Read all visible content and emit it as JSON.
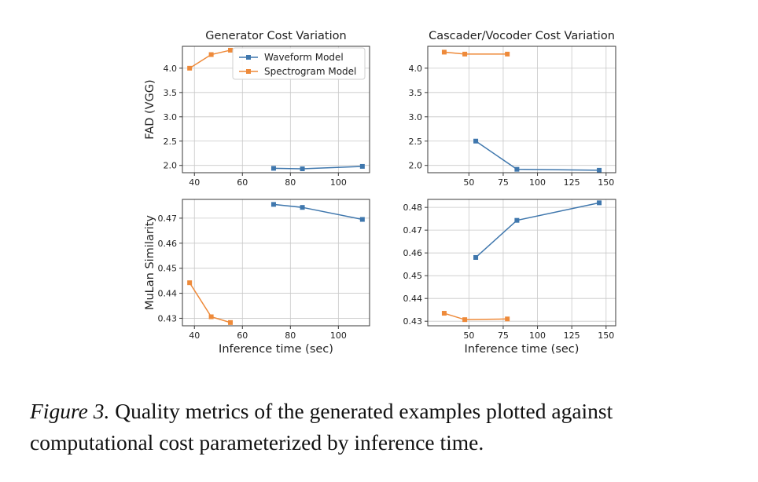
{
  "colors": {
    "waveform": "#3f77ad",
    "spectrogram": "#ee8a3a",
    "grid": "#c8c8c8",
    "frame": "#3a3a3a"
  },
  "chart_data": [
    {
      "type": "line",
      "title": "Generator Cost Variation",
      "xlabel": "",
      "ylabel": "FAD (VGG)",
      "xlim": [
        35,
        113
      ],
      "ylim": [
        1.85,
        4.45
      ],
      "xticks": [
        40,
        60,
        80,
        100
      ],
      "yticks": [
        2.0,
        2.5,
        3.0,
        3.5,
        4.0
      ],
      "ytick_labels": [
        "2.0",
        "2.5",
        "3.0",
        "3.5",
        "4.0"
      ],
      "grid": true,
      "legend": {
        "placement": "top-right",
        "entries": [
          "Waveform Model",
          "Spectrogram Model"
        ]
      },
      "series": [
        {
          "name": "Waveform Model",
          "x": [
            73,
            85,
            110
          ],
          "y": [
            1.94,
            1.93,
            1.98
          ]
        },
        {
          "name": "Spectrogram Model",
          "x": [
            38,
            47,
            55
          ],
          "y": [
            4.0,
            4.28,
            4.37
          ]
        }
      ]
    },
    {
      "type": "line",
      "title": "Cascader/Vocoder Cost Variation",
      "xlabel": "",
      "ylabel": "",
      "xlim": [
        20,
        157
      ],
      "ylim": [
        1.85,
        4.45
      ],
      "xticks": [
        50,
        75,
        100,
        125,
        150
      ],
      "yticks": [
        2.0,
        2.5,
        3.0,
        3.5,
        4.0
      ],
      "ytick_labels": [
        "2.0",
        "2.5",
        "3.0",
        "3.5",
        "4.0"
      ],
      "grid": true,
      "series": [
        {
          "name": "Waveform Model",
          "x": [
            55,
            85,
            145
          ],
          "y": [
            2.5,
            1.92,
            1.9
          ]
        },
        {
          "name": "Spectrogram Model",
          "x": [
            32,
            47,
            78
          ],
          "y": [
            4.33,
            4.29,
            4.29
          ]
        }
      ]
    },
    {
      "type": "line",
      "title": "",
      "xlabel": "Inference time (sec)",
      "ylabel": "MuLan Similarity",
      "xlim": [
        35,
        113
      ],
      "ylim": [
        0.427,
        0.4775
      ],
      "xticks": [
        40,
        60,
        80,
        100
      ],
      "yticks": [
        0.43,
        0.44,
        0.45,
        0.46,
        0.47
      ],
      "ytick_labels": [
        "0.43",
        "0.44",
        "0.45",
        "0.46",
        "0.47"
      ],
      "grid": true,
      "series": [
        {
          "name": "Waveform Model",
          "x": [
            73,
            85,
            110
          ],
          "y": [
            0.4755,
            0.4743,
            0.4695
          ]
        },
        {
          "name": "Spectrogram Model",
          "x": [
            38,
            47,
            55
          ],
          "y": [
            0.4442,
            0.4306,
            0.4283
          ]
        }
      ]
    },
    {
      "type": "line",
      "title": "",
      "xlabel": "Inference time (sec)",
      "ylabel": "",
      "xlim": [
        20,
        157
      ],
      "ylim": [
        0.428,
        0.4835
      ],
      "xticks": [
        50,
        75,
        100,
        125,
        150
      ],
      "yticks": [
        0.43,
        0.44,
        0.45,
        0.46,
        0.47,
        0.48
      ],
      "ytick_labels": [
        "0.43",
        "0.44",
        "0.45",
        "0.46",
        "0.47",
        "0.48"
      ],
      "grid": true,
      "series": [
        {
          "name": "Waveform Model",
          "x": [
            55,
            85,
            145
          ],
          "y": [
            0.458,
            0.4743,
            0.482
          ]
        },
        {
          "name": "Spectrogram Model",
          "x": [
            32,
            47,
            78
          ],
          "y": [
            0.4335,
            0.4307,
            0.431
          ]
        }
      ]
    }
  ],
  "caption": {
    "lead": "Figure 3.",
    "text": " Quality metrics of the generated examples plotted against computational cost parameterized by inference time."
  }
}
